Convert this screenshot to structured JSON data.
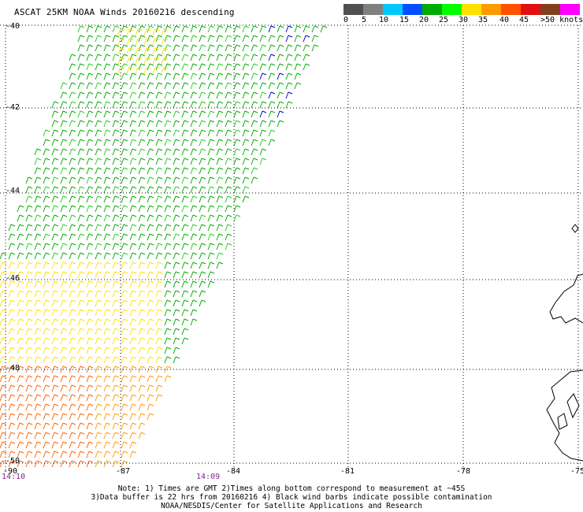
{
  "title": "ASCAT 25KM NOAA Winds 20160216 descending",
  "legend": {
    "colors": [
      "#505050",
      "#808080",
      "#00c8ff",
      "#0050ff",
      "#00aa00",
      "#00ff00",
      "#ffe000",
      "#ff9a00",
      "#ff5000",
      "#e01010",
      "#804020",
      "#ff00ff",
      "#a000e0",
      "#400080"
    ],
    "labels": [
      "0",
      "5",
      "10",
      "15",
      "20",
      "25",
      "30",
      "35",
      "40",
      "45",
      ">50 knots"
    ]
  },
  "map": {
    "lon_labels": [
      "-87",
      "-84",
      "-81",
      "-78",
      "-75"
    ],
    "lat_labels": [
      "-40",
      "-42",
      "-44",
      "-46",
      "-48",
      "-50"
    ],
    "corner_label": "-90",
    "time_labels": [
      "14:10",
      "14:09"
    ]
  },
  "notes": [
    "Note: 1) Times are GMT 2)Times along bottom correspond to measurement at ~45S",
    "3)Data buffer is 22 hrs from 20160216 4) Black wind barbs indicate possible contamination",
    "NOAA/NESDIS/Center for Satellite Applications and Research"
  ]
}
